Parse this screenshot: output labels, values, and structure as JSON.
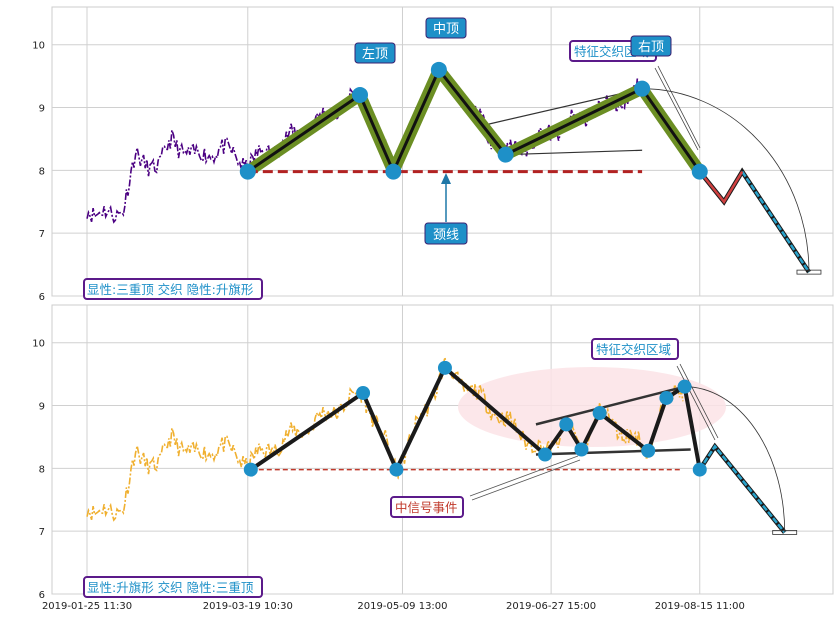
{
  "chart_data": [
    {
      "type": "line",
      "panel": "top",
      "ylim": [
        6,
        10.6
      ],
      "yticks": [
        6,
        7,
        8,
        9,
        10
      ],
      "grid": true,
      "colors": {
        "price": "#4b0082",
        "pattern_fill": "#6b8e23",
        "pattern_edge": "#111111",
        "neckline": "#b22222",
        "callout_bg": "#1e90c8",
        "projection": "#29a3cc"
      },
      "pattern_points": [
        {
          "x": "2019-03-19",
          "y": 7.98
        },
        {
          "x": "2019-04-25",
          "y": 9.2
        },
        {
          "x": "2019-05-06",
          "y": 7.98
        },
        {
          "x": "2019-05-21",
          "y": 9.6
        },
        {
          "x": "2019-06-12",
          "y": 8.25
        },
        {
          "x": "2019-07-27",
          "y": 9.3
        },
        {
          "x": "2019-08-15",
          "y": 7.98
        }
      ],
      "projection_points": [
        {
          "x": "2019-08-15",
          "y": 7.98
        },
        {
          "x": "2019-08-23",
          "y": 7.5
        },
        {
          "x": "2019-08-29",
          "y": 7.98
        },
        {
          "x": "2019-09-20",
          "y": 6.38
        }
      ],
      "neckline": {
        "y": 7.98,
        "x_start": "2019-03-19",
        "x_end": "2019-07-27"
      },
      "annotations": {
        "left_top": "左顶",
        "middle_top": "中顶",
        "right_top": "右顶",
        "neckline": "颈线",
        "feature_zone": "特征交织区域",
        "summary": "显性:三重顶 交织 隐性:升旗形"
      }
    },
    {
      "type": "line",
      "panel": "bottom",
      "ylim": [
        6,
        10.6
      ],
      "yticks": [
        6,
        7,
        8,
        9,
        10
      ],
      "grid": true,
      "colors": {
        "price": "#f0b030",
        "pattern_edge": "#1a1a1a",
        "neckline": "#c0392b",
        "marker": "#1e90c8",
        "zone": "#fbe3e6",
        "projection": "#29a3cc"
      },
      "pattern_points": [
        {
          "x": "2019-03-20",
          "y": 7.98
        },
        {
          "x": "2019-04-26",
          "y": 9.2
        },
        {
          "x": "2019-05-07",
          "y": 7.98
        },
        {
          "x": "2019-05-23",
          "y": 9.6
        },
        {
          "x": "2019-06-25",
          "y": 8.22
        },
        {
          "x": "2019-07-02",
          "y": 8.7
        },
        {
          "x": "2019-07-07",
          "y": 8.3
        },
        {
          "x": "2019-07-13",
          "y": 8.88
        },
        {
          "x": "2019-07-29",
          "y": 8.28
        },
        {
          "x": "2019-08-04",
          "y": 9.12
        },
        {
          "x": "2019-08-10",
          "y": 9.3
        },
        {
          "x": "2019-08-15",
          "y": 7.98
        }
      ],
      "projection_points": [
        {
          "x": "2019-08-15",
          "y": 7.98
        },
        {
          "x": "2019-08-20",
          "y": 8.35
        },
        {
          "x": "2019-09-12",
          "y": 6.98
        }
      ],
      "neckline": {
        "y": 7.98,
        "x_start": "2019-03-20",
        "x_end": "2019-08-09"
      },
      "annotations": {
        "signal_event": "中信号事件",
        "feature_zone": "特征交织区域",
        "summary": "显性:升旗形 交织 隐性:三重顶"
      }
    }
  ],
  "xaxis": {
    "tick_labels": [
      "2019-01-25 11:30",
      "2019-03-19 10:30",
      "2019-05-09 13:00",
      "2019-06-27 15:00",
      "2019-08-15 11:00"
    ]
  }
}
